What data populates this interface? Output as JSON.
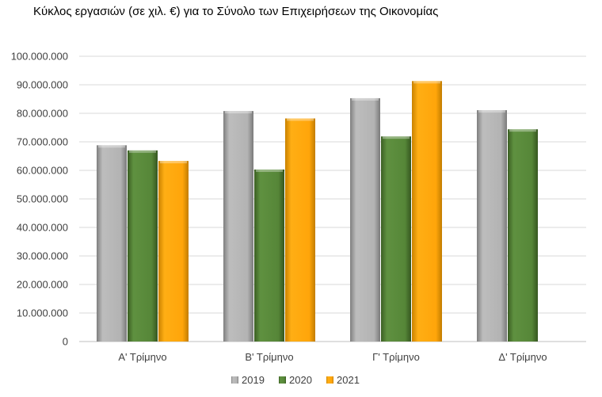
{
  "chart_data": {
    "type": "bar",
    "title": "Κύκλος εργασιών (σε χιλ. €) για το Σύνολο των Επιχειρήσεων της Οικονομίας",
    "xlabel": "",
    "ylabel": "",
    "categories": [
      "Α' Τρίμηνο",
      "Β' Τρίμηνο",
      "Γ' Τρίμηνο",
      "Δ' Τρίμηνο"
    ],
    "series": [
      {
        "name": "2019",
        "color": "#A6A6A6",
        "values": [
          68800000,
          80800000,
          85300000,
          81100000
        ]
      },
      {
        "name": "2020",
        "color": "#548235",
        "values": [
          67000000,
          60300000,
          71900000,
          74400000
        ]
      },
      {
        "name": "2021",
        "color": "#FFA500",
        "values": [
          63300000,
          78200000,
          91300000,
          null
        ]
      }
    ],
    "ylim": [
      0,
      100000000
    ],
    "yticks": [
      "0",
      "10.000.000",
      "20.000.000",
      "30.000.000",
      "40.000.000",
      "50.000.000",
      "60.000.000",
      "70.000.000",
      "80.000.000",
      "90.000.000",
      "100.000.000"
    ],
    "grid": true,
    "legend_position": "bottom"
  }
}
